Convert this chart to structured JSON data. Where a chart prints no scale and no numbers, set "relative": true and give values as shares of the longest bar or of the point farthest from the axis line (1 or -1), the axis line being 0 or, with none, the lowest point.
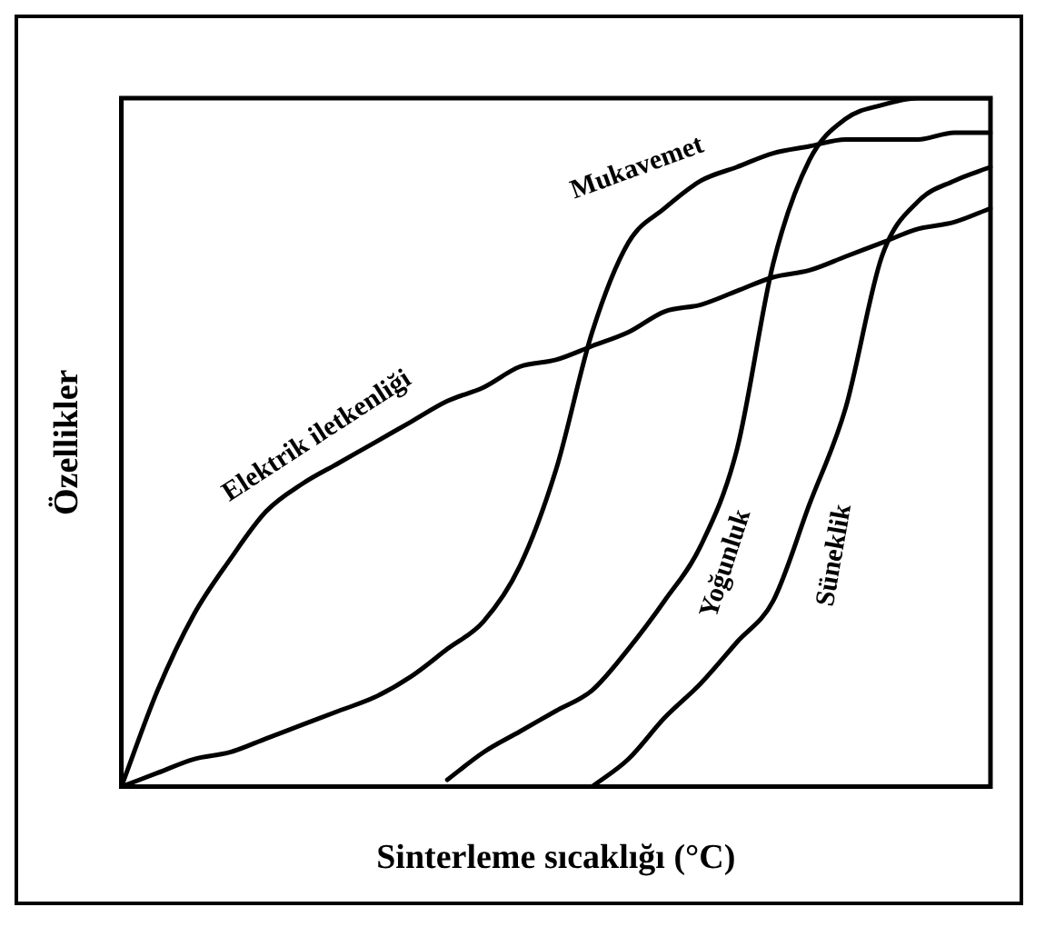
{
  "chart_data": {
    "type": "line",
    "relative": true,
    "xlabel": "Sinterleme sıcaklığı (°C)",
    "ylabel": "Özellikler",
    "categories": [
      null,
      null,
      null,
      null,
      null,
      null,
      null,
      null,
      null,
      null,
      null,
      null,
      null,
      null,
      null,
      null,
      null,
      null,
      null,
      null,
      null,
      null,
      null,
      null,
      null
    ],
    "grid": false,
    "legend": false,
    "marker": "none",
    "line_style": "solid",
    "series": [
      {
        "name": "Elektrik iletkenliği",
        "color": "#000000",
        "values": [
          0,
          0.14,
          0.25,
          0.33,
          0.4,
          0.44,
          0.47,
          0.5,
          0.53,
          0.56,
          0.58,
          0.61,
          0.62,
          0.64,
          0.66,
          0.69,
          0.7,
          0.72,
          0.74,
          0.75,
          0.77,
          0.79,
          0.81,
          0.82,
          0.84
        ]
      },
      {
        "name": "Mukavemet",
        "color": "#000000",
        "values": [
          0,
          0.02,
          0.04,
          0.05,
          0.07,
          0.09,
          0.11,
          0.13,
          0.16,
          0.2,
          0.24,
          0.32,
          0.46,
          0.66,
          0.79,
          0.84,
          0.88,
          0.9,
          0.92,
          0.93,
          0.94,
          0.94,
          0.94,
          0.95,
          0.95
        ]
      },
      {
        "name": "Yoğunluk",
        "color": "#000000",
        "values": [
          null,
          null,
          null,
          null,
          null,
          null,
          null,
          null,
          null,
          0.01,
          0.05,
          0.08,
          0.11,
          0.14,
          0.2,
          0.27,
          0.35,
          0.49,
          0.76,
          0.91,
          0.97,
          0.99,
          1,
          1,
          1
        ]
      },
      {
        "name": "Süneklik",
        "color": "#000000",
        "values": [
          null,
          null,
          null,
          null,
          null,
          null,
          null,
          null,
          null,
          null,
          null,
          null,
          null,
          0,
          0.04,
          0.1,
          0.15,
          0.21,
          0.27,
          0.41,
          0.55,
          0.77,
          0.85,
          0.88,
          0.9
        ]
      }
    ]
  }
}
